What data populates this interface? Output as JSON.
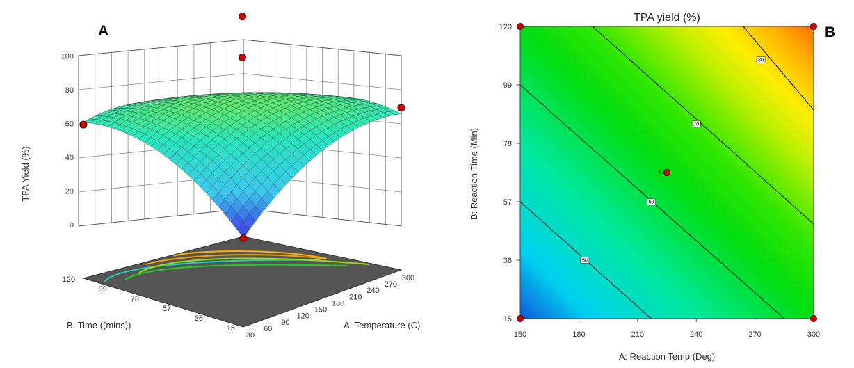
{
  "chart_data": [
    {
      "panel": "A",
      "type": "surface",
      "zlabel": "TPA Yield (%)",
      "xlabel": "A: Temperature (C)",
      "ylabel": "B: Time ((mins))",
      "x_ticks": [
        "30",
        "60",
        "90",
        "120",
        "150",
        "180",
        "210",
        "240",
        "270",
        "300"
      ],
      "y_ticks": [
        "15",
        "36",
        "57",
        "78",
        "99",
        "120"
      ],
      "z_ticks": [
        "0",
        "20",
        "40",
        "60",
        "80",
        "100"
      ],
      "x_range": [
        30,
        300
      ],
      "y_range": [
        15,
        120
      ],
      "z_range": [
        0,
        100
      ],
      "design_points": [
        {
          "x": 30,
          "y": 120,
          "z": 33
        },
        {
          "x": 300,
          "y": 15,
          "z": 38
        },
        {
          "x": 165,
          "y": 67.5,
          "z": 70
        },
        {
          "x": 165,
          "y": 67.5,
          "z": 94
        },
        {
          "x": 30,
          "y": 15,
          "z": -5
        }
      ],
      "grid": true
    },
    {
      "panel": "B",
      "type": "contour",
      "title": "TPA yield (%)",
      "xlabel": "A: Reaction Temp (Deg)",
      "ylabel": "B: Reaction  Time (Min)",
      "x_ticks": [
        "150",
        "180",
        "210",
        "240",
        "270",
        "300"
      ],
      "y_ticks": [
        "15",
        "36",
        "57",
        "78",
        "99",
        "120"
      ],
      "x_range": [
        150,
        300
      ],
      "y_range": [
        15,
        120
      ],
      "contour_levels": [
        "50",
        "60",
        "70",
        "80"
      ],
      "center_label": "5",
      "design_points": [
        {
          "x": 150,
          "y": 120
        },
        {
          "x": 300,
          "y": 120
        },
        {
          "x": 150,
          "y": 15
        },
        {
          "x": 300,
          "y": 15
        },
        {
          "x": 225,
          "y": 67.5
        }
      ],
      "colors": {
        "low": "#1560d8",
        "mid": "#00e000",
        "high": "#ff7a00"
      }
    }
  ]
}
